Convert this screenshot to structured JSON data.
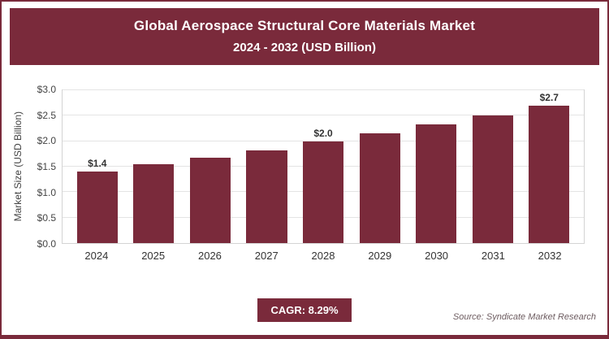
{
  "header": {
    "title_line1": "Global Aerospace Structural Core Materials Market",
    "title_line2": "2024 - 2032 (USD Billion)"
  },
  "chart_data": {
    "type": "bar",
    "title": "Global Aerospace Structural Core Materials Market 2024 - 2032 (USD Billion)",
    "categories": [
      "2024",
      "2025",
      "2026",
      "2027",
      "2028",
      "2029",
      "2030",
      "2031",
      "2032"
    ],
    "values": [
      1.4,
      1.55,
      1.68,
      1.82,
      2.0,
      2.15,
      2.33,
      2.51,
      2.7
    ],
    "bar_value_labels": [
      "$1.4",
      "",
      "",
      "",
      "$2.0",
      "",
      "",
      "",
      "$2.7"
    ],
    "xlabel": "",
    "ylabel": "Market Size (USD Billion)",
    "ylim": [
      0,
      3.0
    ],
    "ytick_step": 0.5,
    "ytick_prefix": "$",
    "grid": true,
    "legend": "none",
    "bar_color": "#7a2a3b"
  },
  "footer": {
    "cagr_label": "CAGR: 8.29%",
    "source": "Source: Syndicate Market Research"
  },
  "colors": {
    "accent": "#7a2a3b",
    "gridline": "#e4e4e4",
    "plot_border": "#d4d4d4"
  }
}
